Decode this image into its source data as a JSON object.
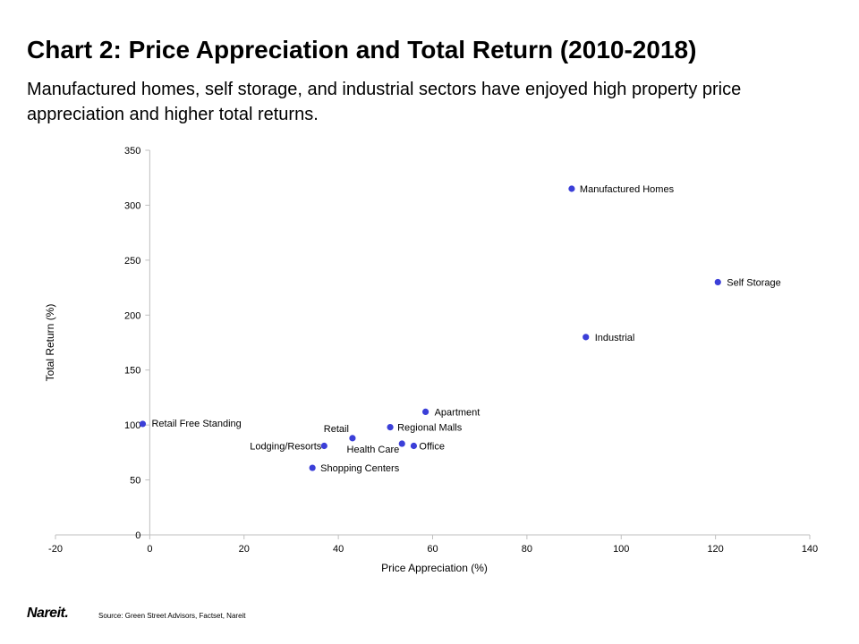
{
  "header": {
    "title": "Chart 2: Price Appreciation and Total Return (2010-2018)",
    "subtitle": "Manufactured homes, self storage, and industrial sectors have enjoyed high property price appreciation and higher total returns."
  },
  "footer": {
    "logo_text": "Nareit.",
    "source": "Source: Green Street Advisors, Factset, Nareit"
  },
  "chart_data": {
    "type": "scatter",
    "xlabel": "Price Appreciation (%)",
    "ylabel": "Total Return (%)",
    "xlim": [
      -20,
      140
    ],
    "ylim": [
      0,
      350
    ],
    "xticks": [
      -20,
      0,
      20,
      40,
      60,
      80,
      100,
      120,
      140
    ],
    "yticks": [
      0,
      50,
      100,
      150,
      200,
      250,
      300,
      350
    ],
    "grid": false,
    "legend": "none",
    "marker_color": "#3b3fd8",
    "points": [
      {
        "label": "Manufactured Homes",
        "x": 89.5,
        "y": 315
      },
      {
        "label": "Self Storage",
        "x": 120.5,
        "y": 230
      },
      {
        "label": "Industrial",
        "x": 92.5,
        "y": 180
      },
      {
        "label": "Apartment",
        "x": 58.5,
        "y": 112
      },
      {
        "label": "Retail Free Standing",
        "x": -1.5,
        "y": 101
      },
      {
        "label": "Regional Malls",
        "x": 51,
        "y": 98
      },
      {
        "label": "Retail",
        "x": 43,
        "y": 88
      },
      {
        "label": "Lodging/Resorts",
        "x": 37,
        "y": 81
      },
      {
        "label": "Health Care",
        "x": 53.5,
        "y": 83
      },
      {
        "label": "Office",
        "x": 56,
        "y": 81
      },
      {
        "label": "Shopping Centers",
        "x": 34.5,
        "y": 61
      }
    ]
  }
}
